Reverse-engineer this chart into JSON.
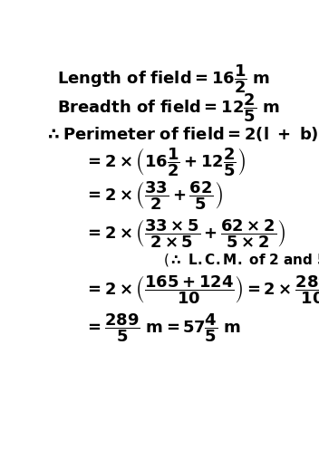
{
  "background_color": "#ffffff",
  "text_color": "#000000",
  "fs_main": 13,
  "fs_math": 13,
  "fs_note": 11
}
